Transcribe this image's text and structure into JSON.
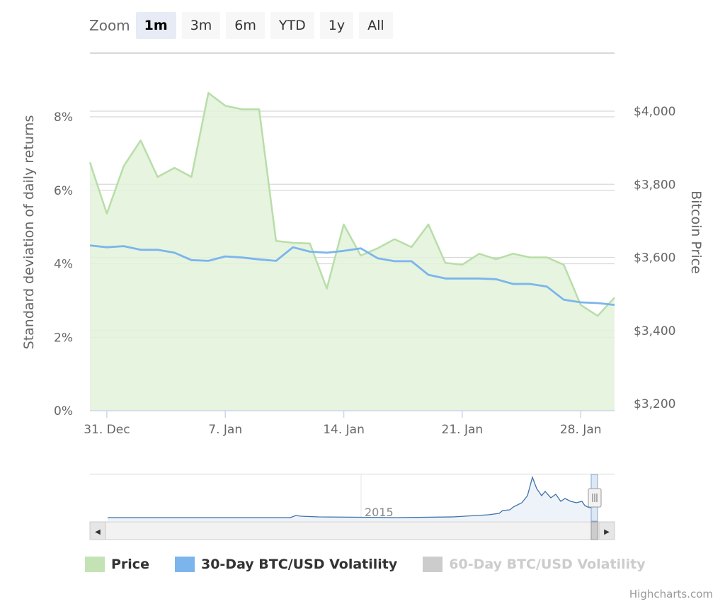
{
  "zoom": {
    "label": "Zoom",
    "buttons": [
      "1m",
      "3m",
      "6m",
      "YTD",
      "1y",
      "All"
    ],
    "active_index": 0
  },
  "axes": {
    "left_title": "Standard deviation of daily returns",
    "right_title": "Bitcoin Price",
    "left_ticks": [
      "0%",
      "2%",
      "4%",
      "6%",
      "8%"
    ],
    "right_ticks": [
      "$3,200",
      "$3,400",
      "$3,600",
      "$3,800",
      "$4,000"
    ],
    "x_ticks": [
      "31. Dec",
      "7. Jan",
      "14. Jan",
      "21. Jan",
      "28. Jan"
    ]
  },
  "navigator": {
    "label": "2015",
    "left_arrow": "◀",
    "right_arrow": "▶"
  },
  "legend": [
    {
      "name": "Price",
      "color": "#c4e3b5",
      "visible": true
    },
    {
      "name": "30-Day BTC/USD Volatility",
      "color": "#7cb5ec",
      "visible": true
    },
    {
      "name": "60-Day BTC/USD Volatility",
      "color": "#cccccc",
      "visible": false
    }
  ],
  "credits": "Highcharts.com",
  "colors": {
    "price_line": "#b8dea8",
    "price_fill": "#e2f2da",
    "vol_line": "#7cb5ec",
    "grid": "#d8d8d8",
    "axis_text": "#666666"
  },
  "chart_data": {
    "type": "line",
    "x_start": "30. Dec",
    "x_end": "30. Jan",
    "x_range_days": [
      -1,
      30
    ],
    "y_left": {
      "range": [
        0,
        9
      ],
      "unit": "%"
    },
    "y_right": {
      "range": [
        3200,
        4050
      ],
      "unit": "$"
    },
    "series": [
      {
        "name": "Price",
        "axis": "right",
        "x": [
          -1,
          0,
          1,
          2,
          3,
          4,
          5,
          6,
          7,
          8,
          9,
          10,
          11,
          12,
          13,
          14,
          15,
          16,
          17,
          18,
          19,
          20,
          21,
          22,
          23,
          24,
          25,
          26,
          27,
          28,
          29,
          30
        ],
        "values": [
          3860,
          3720,
          3850,
          3920,
          3820,
          3845,
          3820,
          4050,
          4015,
          4005,
          4005,
          3645,
          3640,
          3638,
          3515,
          3690,
          3605,
          3625,
          3650,
          3628,
          3690,
          3585,
          3580,
          3610,
          3595,
          3610,
          3600,
          3600,
          3580,
          3470,
          3440,
          3490
        ]
      },
      {
        "name": "30-Day BTC/USD Volatility",
        "axis": "left",
        "x": [
          -1,
          0,
          1,
          2,
          3,
          4,
          5,
          6,
          7,
          8,
          9,
          10,
          11,
          12,
          13,
          14,
          15,
          16,
          17,
          18,
          19,
          20,
          21,
          22,
          23,
          24,
          25,
          26,
          27,
          28,
          29,
          30
        ],
        "values": [
          4.5,
          4.45,
          4.48,
          4.38,
          4.38,
          4.3,
          4.1,
          4.08,
          4.2,
          4.17,
          4.12,
          4.08,
          4.45,
          4.33,
          4.3,
          4.35,
          4.42,
          4.15,
          4.07,
          4.07,
          3.7,
          3.6,
          3.6,
          3.6,
          3.58,
          3.45,
          3.45,
          3.38,
          3.02,
          2.95,
          2.93,
          2.88
        ]
      }
    ]
  }
}
